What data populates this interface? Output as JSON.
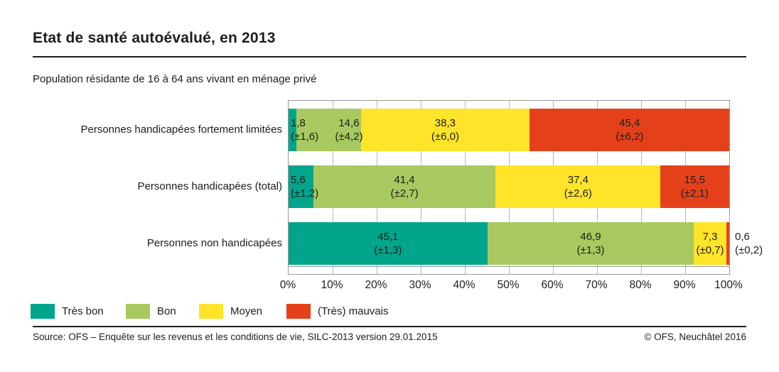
{
  "title": "Etat de santé autoévalué, en 2013",
  "subtitle": "Population résidante de 16 à 64 ans vivant en ménage privé",
  "footer": {
    "source": "Source: OFS – Enquête sur les revenus et les conditions de vie, SILC-2013 version 29.01.2015",
    "copyright": "© OFS, Neuchâtel 2016"
  },
  "chart_data": {
    "type": "bar",
    "orientation": "horizontal",
    "stacked": true,
    "unit": "%",
    "xlim": [
      0,
      100
    ],
    "x_tick_labels": [
      "0%",
      "10%",
      "20%",
      "30%",
      "40%",
      "50%",
      "60%",
      "70%",
      "80%",
      "90%",
      "100%"
    ],
    "grid": true,
    "legend_position": "bottom-left",
    "series": [
      {
        "name": "Très bon",
        "color": "#00a58c"
      },
      {
        "name": "Bon",
        "color": "#a8c95f"
      },
      {
        "name": "Moyen",
        "color": "#ffe429"
      },
      {
        "name": "(Très) mauvais",
        "color": "#e4411b"
      }
    ],
    "categories": [
      "Personnes handicapées fortement limitées",
      "Personnes handicapées (total)",
      "Personnes non handicapées"
    ],
    "rows": [
      {
        "label": "Personnes handicapées fortement limitées",
        "segments": [
          {
            "value": 1.8,
            "value_label": "1,8",
            "ci_label": "(±1,6)",
            "label_mode": "left"
          },
          {
            "value": 14.6,
            "value_label": "14,6",
            "ci_label": "(±4,2)",
            "label_center_pct": 13.7
          },
          {
            "value": 38.3,
            "value_label": "38,3",
            "ci_label": "(±6,0)"
          },
          {
            "value": 45.4,
            "value_label": "45,4",
            "ci_label": "(±6,2)"
          }
        ]
      },
      {
        "label": "Personnes handicapées (total)",
        "segments": [
          {
            "value": 5.6,
            "value_label": "5,6",
            "ci_label": "(±1,2)",
            "label_mode": "left"
          },
          {
            "value": 41.4,
            "value_label": "41,4",
            "ci_label": "(±2,7)"
          },
          {
            "value": 37.4,
            "value_label": "37,4",
            "ci_label": "(±2,6)"
          },
          {
            "value": 15.5,
            "value_label": "15,5",
            "ci_label": "(±2,1)"
          }
        ]
      },
      {
        "label": "Personnes non handicapées",
        "segments": [
          {
            "value": 45.1,
            "value_label": "45,1",
            "ci_label": "(±1,3)"
          },
          {
            "value": 46.9,
            "value_label": "46,9",
            "ci_label": "(±1,3)"
          },
          {
            "value": 7.3,
            "value_label": "7,3",
            "ci_label": "(±0,7)"
          },
          {
            "value": 0.6,
            "value_label": "0,6",
            "ci_label": "(±0,2)",
            "label_mode": "outside"
          }
        ]
      }
    ]
  }
}
